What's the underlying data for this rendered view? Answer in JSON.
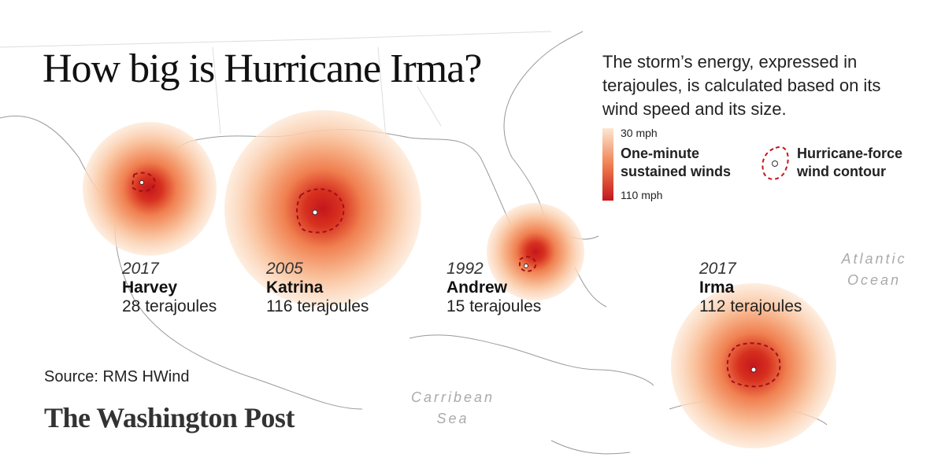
{
  "title": "How big is Hurricane Irma?",
  "description": "The storm’s energy, expressed in terajoules, is calculated based on its wind speed and its size.",
  "legend": {
    "scale_top_label": "30 mph",
    "scale_label": "One-minute sustained winds",
    "scale_bottom_label": "110 mph",
    "contour_label": "Hurricane-force wind contour"
  },
  "storms": [
    {
      "year": "2017",
      "name": "Harvey",
      "energy": "28 terajoules"
    },
    {
      "year": "2005",
      "name": "Katrina",
      "energy": "116 terajoules"
    },
    {
      "year": "1992",
      "name": "Andrew",
      "energy": "15 terajoules"
    },
    {
      "year": "2017",
      "name": "Irma",
      "energy": "112 terajoules"
    }
  ],
  "places": [
    "Atlantic Ocean",
    "Carribean Sea"
  ],
  "source": "Source: RMS HWind",
  "publisher": "The Washington Post"
}
